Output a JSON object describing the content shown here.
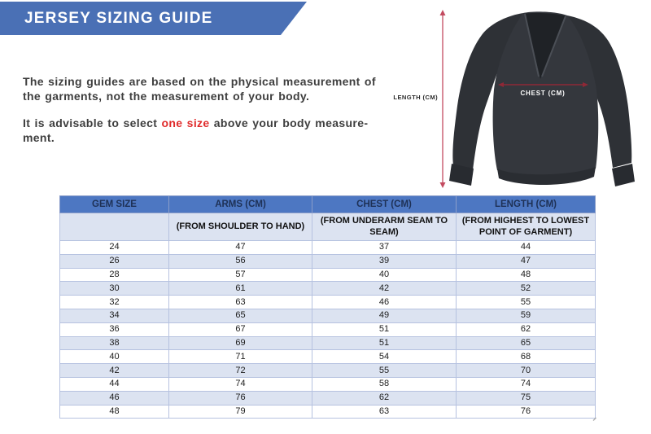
{
  "banner": {
    "title": "JERSEY SIZING GUIDE"
  },
  "intro": {
    "p1": "The sizing guides are based on the physical measurement of the garments, not the measurement of your body.",
    "p2_before": "It is advisable to select ",
    "p2_highlight": "one size",
    "p2_after_line1": " above your body measure-",
    "p2_after_line2": "ment."
  },
  "diagram": {
    "length_label": "LENGTH (CM)",
    "chest_label": "CHEST (CM)"
  },
  "colors": {
    "banner_blue": "#4a70b5",
    "table_header_blue": "#4d77c2",
    "table_header_text": "#1e3156",
    "table_alt_row": "#dce3f1",
    "highlight_red": "#e02b2b",
    "length_arrow_red": "#c34b60",
    "chest_line_red": "#8f2836",
    "jersey_dark": "#33363c"
  },
  "table": {
    "headers": [
      {
        "title": "GEM SIZE",
        "subtitle": ""
      },
      {
        "title": "ARMS (CM)",
        "subtitle": "(FROM SHOULDER TO HAND)"
      },
      {
        "title": "CHEST (CM)",
        "subtitle": "(FROM UNDERARM SEAM TO SEAM)"
      },
      {
        "title": "LENGTH (CM)",
        "subtitle": "(FROM HIGHEST TO LOWEST POINT OF GARMENT)"
      }
    ],
    "rows": [
      [
        24,
        47,
        37,
        44
      ],
      [
        26,
        56,
        39,
        47
      ],
      [
        28,
        57,
        40,
        48
      ],
      [
        30,
        61,
        42,
        52
      ],
      [
        32,
        63,
        46,
        55
      ],
      [
        34,
        65,
        49,
        59
      ],
      [
        36,
        67,
        51,
        62
      ],
      [
        38,
        69,
        51,
        65
      ],
      [
        40,
        71,
        54,
        68
      ],
      [
        42,
        72,
        55,
        70
      ],
      [
        44,
        74,
        58,
        74
      ],
      [
        46,
        76,
        62,
        75
      ],
      [
        48,
        79,
        63,
        76
      ]
    ]
  }
}
